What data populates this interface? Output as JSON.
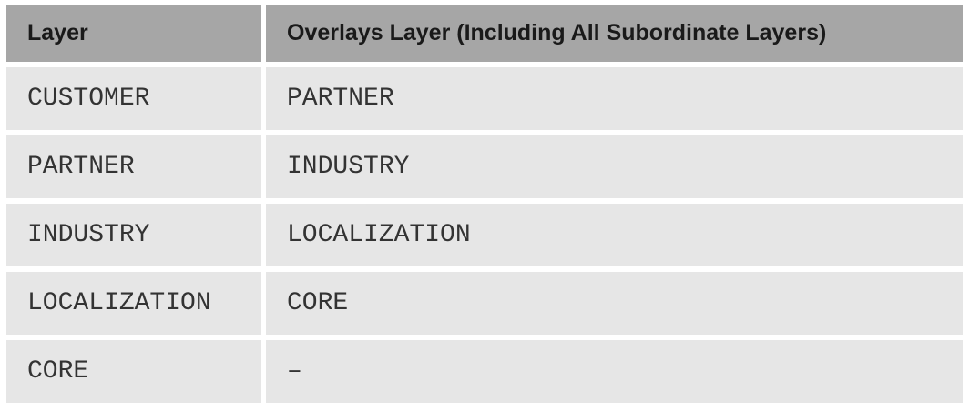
{
  "table": {
    "header": [
      "Layer",
      "Overlays Layer (Including All Subordinate Layers)"
    ],
    "rows": [
      [
        "CUSTOMER",
        "PARTNER"
      ],
      [
        "PARTNER",
        "INDUSTRY"
      ],
      [
        "INDUSTRY",
        "LOCALIZATION"
      ],
      [
        "LOCALIZATION",
        "CORE"
      ],
      [
        "CORE",
        "–"
      ]
    ]
  }
}
